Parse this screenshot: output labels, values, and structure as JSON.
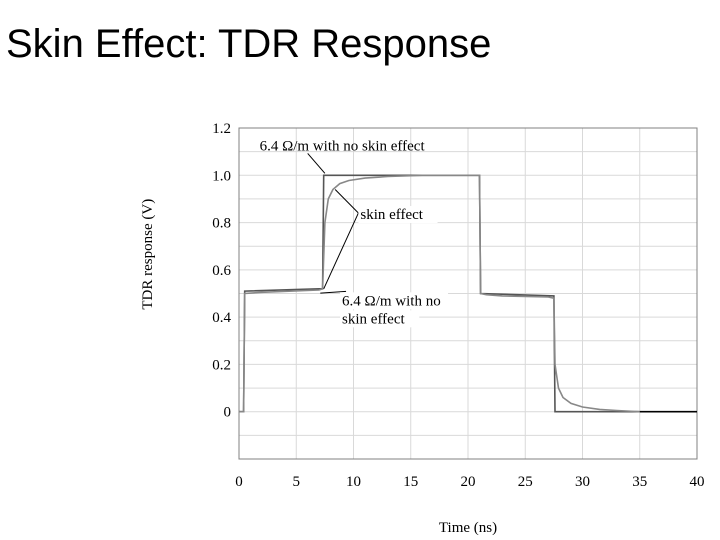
{
  "slide": {
    "title": "Skin Effect: TDR Response"
  },
  "chart_data": {
    "type": "line",
    "title": "",
    "xlabel": "Time (ns)",
    "ylabel": "TDR response (V)",
    "xlim": [
      0,
      40
    ],
    "ylim": [
      -0.2,
      1.2
    ],
    "grid": true,
    "x_ticks": [
      0,
      5,
      10,
      15,
      20,
      25,
      30,
      35,
      40
    ],
    "x_tick_labels": [
      "0",
      "5",
      "10",
      "15",
      "20",
      "25",
      "30",
      "35",
      "40"
    ],
    "y_ticks": [
      0,
      0.2,
      0.4,
      0.6,
      0.8,
      1.0,
      1.2
    ],
    "y_tick_labels": [
      "0",
      "0.2",
      "0.4",
      "0.6",
      "0.8",
      "1.0",
      "1.2"
    ],
    "series": [
      {
        "key": "no_skin",
        "color": "#555555",
        "x": [
          0,
          0.4,
          0.5,
          7,
          7.3,
          7.4,
          12,
          21,
          21.1,
          27.5,
          27.6,
          35
        ],
        "y": [
          0,
          0,
          0.51,
          0.52,
          0.52,
          1.0,
          1.0,
          1.0,
          0.5,
          0.49,
          0.0,
          0.0
        ]
      },
      {
        "key": "skin",
        "color": "#888888",
        "x": [
          0,
          0.4,
          0.5,
          2,
          7,
          7.3,
          7.5,
          7.8,
          8.2,
          8.8,
          9.6,
          11,
          13,
          16,
          20,
          21,
          21.1,
          21.6,
          23,
          27,
          27.5,
          27.6,
          27.9,
          28.3,
          29,
          30,
          31.5,
          33,
          35
        ],
        "y": [
          0,
          0,
          0.5,
          0.505,
          0.515,
          0.52,
          0.8,
          0.9,
          0.94,
          0.965,
          0.978,
          0.988,
          0.995,
          1.0,
          1.0,
          1.0,
          0.5,
          0.495,
          0.49,
          0.485,
          0.48,
          0.2,
          0.1,
          0.06,
          0.035,
          0.02,
          0.01,
          0.005,
          0.0
        ]
      }
    ],
    "baseline": {
      "x": [
        35,
        40
      ],
      "y": [
        0,
        0
      ],
      "color": "#000000"
    },
    "annotations": [
      {
        "key": "top",
        "lines": [
          "6.4 Ω/m with no skin effect"
        ],
        "anchor_x": 7.5,
        "anchor_y": 1.0,
        "text_x": 1.8,
        "text_y": 1.105
      },
      {
        "key": "skin",
        "lines": [
          "skin effect"
        ],
        "targets": [
          [
            8.4,
            0.94
          ],
          [
            7.4,
            0.52
          ]
        ],
        "text_x": 10.6,
        "text_y": 0.815
      },
      {
        "key": "bottom",
        "lines": [
          "6.4 Ω/m with no",
          "skin effect"
        ],
        "anchor_x": 7.1,
        "anchor_y": 0.51,
        "text_x": 9,
        "text_y": 0.45
      }
    ]
  }
}
